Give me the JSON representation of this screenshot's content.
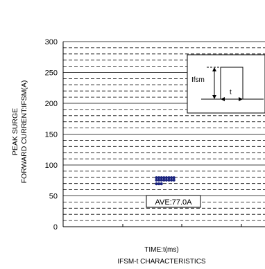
{
  "chart_data": {
    "type": "scatter",
    "title": "",
    "caption": "IFSM-t CHARACTERISTICS",
    "xlabel": "TIME:t(ms)",
    "ylabel_lines": [
      "PEAK SURGE",
      "FORWARD CURRENT:IFSM(A)"
    ],
    "ylim": [
      0,
      300
    ],
    "y_ticks": [
      0,
      50,
      100,
      150,
      200,
      250,
      300
    ],
    "grid": {
      "major": true,
      "minor_dashed": true
    },
    "series": [
      {
        "color": "#1a237e",
        "points": [
          {
            "row": 1,
            "y": 79.5,
            "count": 8
          },
          {
            "row": 2,
            "y": 75.5,
            "count": 8
          },
          {
            "row": 3,
            "y": 69.5,
            "count": 3
          }
        ]
      }
    ],
    "annotation": {
      "text": "AVE:77.0A"
    },
    "inset": {
      "label_ifsm": "Ifsm",
      "label_t": "t"
    }
  }
}
